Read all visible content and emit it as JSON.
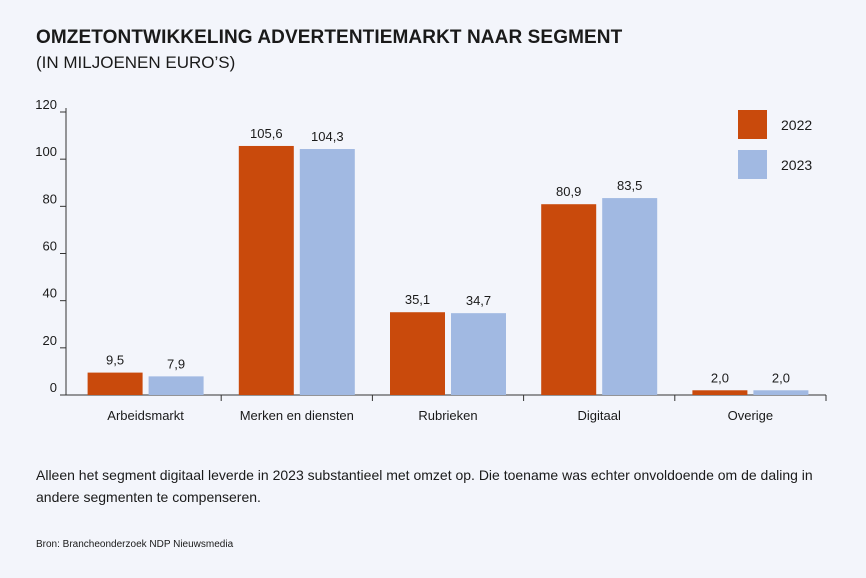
{
  "title": "OMZETONTWIKKELING ADVERTENTIEMARKT NAAR SEGMENT",
  "subtitle": "(IN MILJOENEN EURO’S)",
  "note": "Alleen het segment digitaal leverde in 2023 substantieel met omzet op. Die toename was echter onvoldoende om de daling in andere segmenten te compenseren.",
  "source": "Bron: Brancheonderzoek NDP Nieuwsmedia",
  "colors": {
    "s2022": "#c94a0c",
    "s2023": "#a1b9e2"
  },
  "chart_data": {
    "type": "bar",
    "categories": [
      "Arbeidsmarkt",
      "Merken en diensten",
      "Rubrieken",
      "Digitaal",
      "Overige"
    ],
    "series": [
      {
        "name": "2022",
        "values": [
          9.5,
          105.6,
          35.1,
          80.9,
          2.0
        ],
        "labels": [
          "9,5",
          "105,6",
          "35,1",
          "80,9",
          "2,0"
        ]
      },
      {
        "name": "2023",
        "values": [
          7.9,
          104.3,
          34.7,
          83.5,
          2.0
        ],
        "labels": [
          "7,9",
          "104,3",
          "34,7",
          "83,5",
          "2,0"
        ]
      }
    ],
    "yticks": [
      0,
      20,
      40,
      60,
      80,
      100,
      120
    ],
    "ylim": [
      0,
      120
    ],
    "grid": false,
    "legend": "top-right"
  }
}
